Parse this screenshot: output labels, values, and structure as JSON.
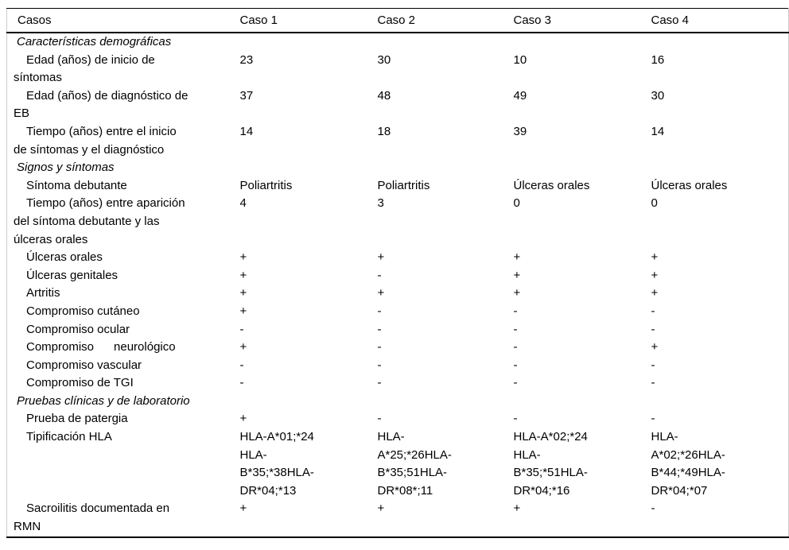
{
  "colors": {
    "background": "#ffffff",
    "text": "#000000",
    "rule_dark": "#000000",
    "rule_light": "#cccccc"
  },
  "table": {
    "columns": [
      "Casos",
      "Caso 1",
      "Caso 2",
      "Caso 3",
      "Caso 4"
    ],
    "rows": [
      {
        "type": "section",
        "label": "Características demográficas",
        "values": [
          "",
          "",
          "",
          ""
        ]
      },
      {
        "type": "item",
        "label": "Edad (años) de inicio de\nsíntomas",
        "values": [
          "23",
          "30",
          "10",
          "16"
        ]
      },
      {
        "type": "item",
        "label": "Edad (años) de diagnóstico de\nEB",
        "values": [
          "37",
          "48",
          "49",
          "30"
        ]
      },
      {
        "type": "item",
        "label": "Tiempo (años) entre el inicio\nde síntomas y el diagnóstico",
        "values": [
          "14",
          "18",
          "39",
          "14"
        ]
      },
      {
        "type": "section",
        "label": "Signos y síntomas",
        "values": [
          "",
          "",
          "",
          ""
        ]
      },
      {
        "type": "item",
        "label": "Síntoma debutante",
        "values": [
          "Poliartritis",
          "Poliartritis",
          "Úlceras orales",
          "Úlceras orales"
        ]
      },
      {
        "type": "item",
        "label": "Tiempo (años) entre aparición\ndel síntoma debutante y las\núlceras orales",
        "values": [
          "4",
          "3",
          "0",
          "0"
        ]
      },
      {
        "type": "item",
        "label": "Úlceras orales",
        "values": [
          "+",
          "+",
          "+",
          "+"
        ]
      },
      {
        "type": "item",
        "label": "Úlceras genitales",
        "values": [
          "+",
          "-",
          "+",
          "+"
        ]
      },
      {
        "type": "item",
        "label": "Artritis",
        "values": [
          "+",
          "+",
          "+",
          "+"
        ]
      },
      {
        "type": "item",
        "label": "Compromiso cutáneo",
        "values": [
          "+",
          "-",
          "-",
          "-"
        ]
      },
      {
        "type": "item",
        "label": "Compromiso ocular",
        "values": [
          "-",
          "-",
          "-",
          "-"
        ]
      },
      {
        "type": "item",
        "label": "Compromiso      neurológico",
        "values": [
          "+",
          "-",
          "-",
          "+"
        ]
      },
      {
        "type": "item",
        "label": "Compromiso vascular",
        "values": [
          "-",
          "-",
          "-",
          "-"
        ]
      },
      {
        "type": "item",
        "label": "Compromiso de TGI",
        "values": [
          "-",
          "-",
          "-",
          "-"
        ]
      },
      {
        "type": "section",
        "label": "Pruebas clínicas y de laboratorio",
        "values": [
          "",
          "",
          "",
          ""
        ]
      },
      {
        "type": "item",
        "label": "Prueba de patergia",
        "values": [
          "+",
          "-",
          "-",
          "-"
        ]
      },
      {
        "type": "item",
        "label": "Tipificación HLA",
        "values": [
          "HLA-A*01;*24\nHLA-\nB*35;*38HLA-\nDR*04;*13",
          "HLA-\nA*25;*26HLA-\nB*35;51HLA-\nDR*08*;11",
          "HLA-A*02;*24\nHLA-\nB*35;*51HLA-\nDR*04;*16",
          "HLA-\nA*02;*26HLA-\nB*44;*49HLA-\nDR*04;*07"
        ]
      },
      {
        "type": "item",
        "label": "Sacroilitis documentada en\nRMN",
        "values": [
          "+",
          "+",
          "+",
          "-"
        ]
      }
    ]
  }
}
